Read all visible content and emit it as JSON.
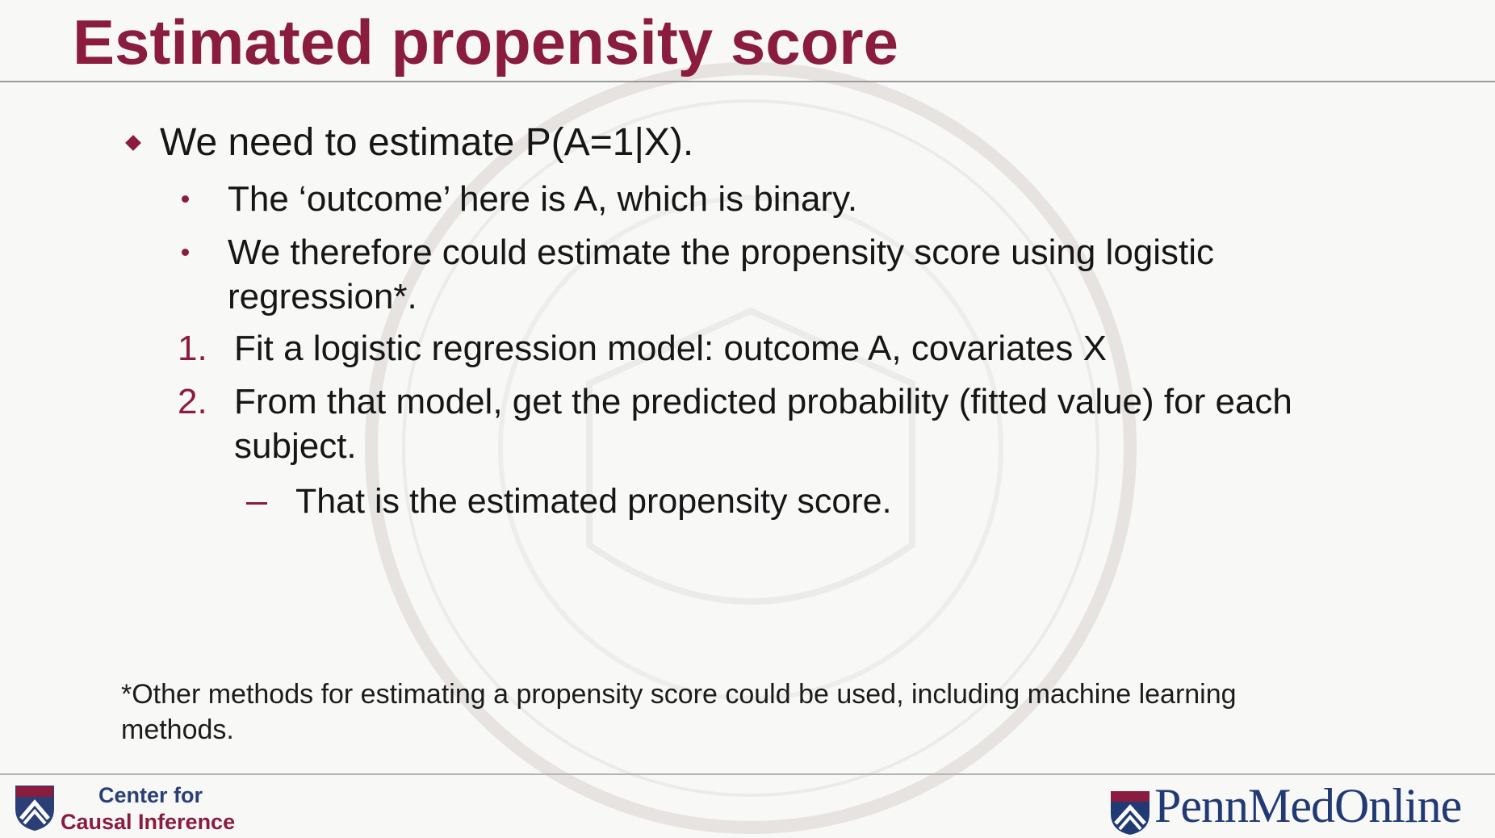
{
  "slide": {
    "title": "Estimated propensity score",
    "bullets": {
      "main": "We need to estimate P(A=1|X).",
      "sub1": "The ‘outcome’ here is A, which is binary.",
      "sub2_line1": "We therefore could estimate the propensity score using logistic",
      "sub2_line2": "regression*.",
      "num1_marker": "1.",
      "num1": "Fit a logistic regression model: outcome A, covariates X",
      "num2_marker": "2.",
      "num2_line1": "From that model, get the predicted probability (fitted value) for each",
      "num2_line2": "subject.",
      "dash1": "That is the estimated propensity score."
    },
    "footnote_line1": "*Other methods for estimating a propensity score could be used, including machine learning",
    "footnote_line2": "methods.",
    "branding": {
      "left_line1": "Center for",
      "left_line2": "Causal Inference",
      "right_part1": "Penn",
      "right_part2": "Med",
      "right_part3": "Online"
    }
  },
  "colors": {
    "accent": "#8a1c3e",
    "brand_blue": "#213a74",
    "text": "#161616",
    "background": "#f8f8f7"
  },
  "icons": {
    "bullet_main": "diamond-bullet-icon",
    "bullet_sub": "dot-bullet-icon",
    "bullet_dash": "dash-bullet-icon",
    "watermark": "university-seal-watermark",
    "logo_left": "penn-shield-icon",
    "logo_right": "penn-shield-icon"
  }
}
